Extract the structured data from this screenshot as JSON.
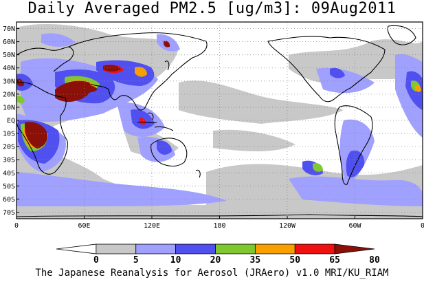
{
  "title": "Daily Averaged PM2.5 [ug/m3]: 09Aug2011",
  "footer": "The Japanese Reanalysis for Aerosol (JRAero) v1.0 MRI/KU_RIAM",
  "map": {
    "lat_labels": [
      "70N",
      "60N",
      "50N",
      "40N",
      "30N",
      "20N",
      "10N",
      "EQ",
      "10S",
      "20S",
      "30S",
      "40S",
      "50S",
      "60S",
      "70S"
    ],
    "lon_labels": [
      "0",
      "60E",
      "120E",
      "180",
      "120W",
      "60W",
      "0"
    ],
    "lon_range": [
      0,
      360
    ],
    "lat_range": [
      -75,
      75
    ],
    "gridlines": true
  },
  "colorbar": {
    "levels": [
      "0",
      "5",
      "10",
      "20",
      "35",
      "50",
      "65",
      "80"
    ],
    "colors": [
      "#ffffff",
      "#c8c8c8",
      "#a0a0ff",
      "#5050f0",
      "#80c830",
      "#f8a000",
      "#f01010",
      "#8a1008"
    ]
  }
}
